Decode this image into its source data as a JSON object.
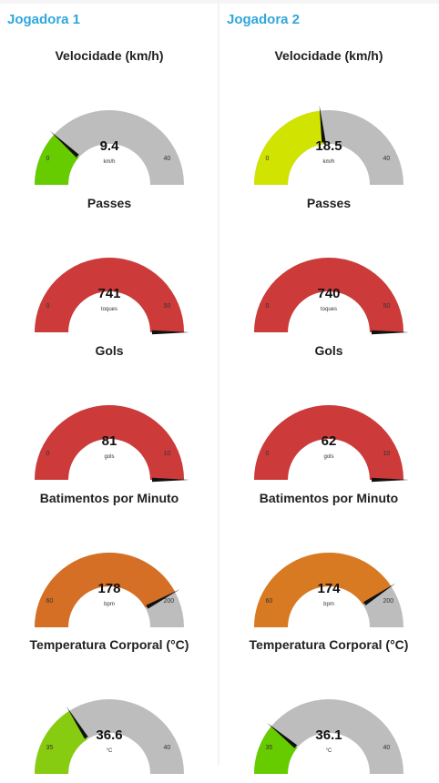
{
  "players": [
    {
      "title": "Jogadora 1",
      "gauges": [
        {
          "title": "Velocidade (km/h)",
          "value": 9.4,
          "display": "9.4",
          "unit": "km/h",
          "min": 0,
          "max": 40,
          "min_label": "0",
          "max_label": "40",
          "color": "#66cc00"
        },
        {
          "title": "Passes",
          "value": 741,
          "display": "741",
          "unit": "toques",
          "min": 0,
          "max": 50,
          "min_label": "0",
          "max_label": "50",
          "color": "#cc3a3a"
        },
        {
          "title": "Gols",
          "value": 81,
          "display": "81",
          "unit": "gols",
          "min": 0,
          "max": 10,
          "min_label": "0",
          "max_label": "10",
          "color": "#cc3a3a"
        },
        {
          "title": "Batimentos por Minuto",
          "value": 178,
          "display": "178",
          "unit": "bpm",
          "min": 60,
          "max": 200,
          "min_label": "60",
          "max_label": "200",
          "color": "#d46f25"
        },
        {
          "title": "Temperatura Corporal (°C)",
          "value": 36.6,
          "display": "36.6",
          "unit": "°C",
          "min": 35,
          "max": 40,
          "min_label": "35",
          "max_label": "40",
          "color": "#88cc11"
        }
      ]
    },
    {
      "title": "Jogadora 2",
      "gauges": [
        {
          "title": "Velocidade (km/h)",
          "value": 18.5,
          "display": "18.5",
          "unit": "km/h",
          "min": 0,
          "max": 40,
          "min_label": "0",
          "max_label": "40",
          "color": "#d1e300"
        },
        {
          "title": "Passes",
          "value": 740,
          "display": "740",
          "unit": "toques",
          "min": 0,
          "max": 50,
          "min_label": "0",
          "max_label": "50",
          "color": "#cc3a3a"
        },
        {
          "title": "Gols",
          "value": 62,
          "display": "62",
          "unit": "gols",
          "min": 0,
          "max": 10,
          "min_label": "0",
          "max_label": "10",
          "color": "#cc3a3a"
        },
        {
          "title": "Batimentos por Minuto",
          "value": 174,
          "display": "174",
          "unit": "bpm",
          "min": 60,
          "max": 200,
          "min_label": "60",
          "max_label": "200",
          "color": "#d87a22"
        },
        {
          "title": "Temperatura Corporal (°C)",
          "value": 36.1,
          "display": "36.1",
          "unit": "°C",
          "min": 35,
          "max": 40,
          "min_label": "35",
          "max_label": "40",
          "color": "#66cc00"
        }
      ]
    }
  ],
  "colors": {
    "track": "#bdbdbd",
    "needle": "#111111",
    "title": "#2fa7dc"
  }
}
